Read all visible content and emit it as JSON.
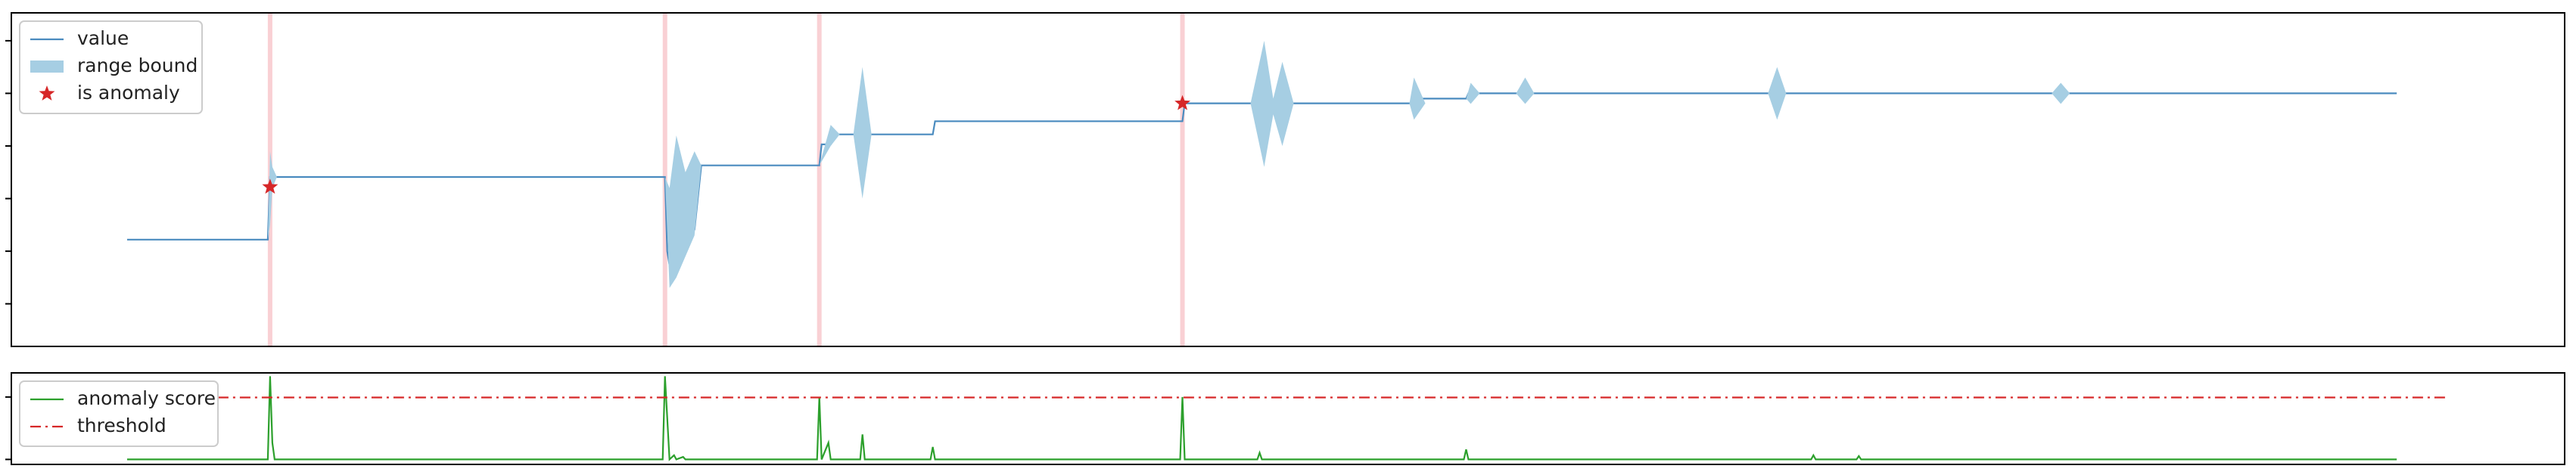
{
  "chart_data": [
    {
      "type": "line",
      "xlim": [
        -51,
        1074
      ],
      "ylim": [
        -0.81,
        5.53
      ],
      "yticks": [
        0,
        1,
        2,
        3,
        4,
        5
      ],
      "legend": "upper left",
      "spans": [
        63,
        237,
        305,
        465
      ],
      "span_color": "#f9d0d4",
      "series": [
        {
          "name": "value",
          "color": "#4a8bbf",
          "x": [
            0,
            62,
            63,
            237,
            238,
            240,
            243,
            246,
            248,
            250,
            253,
            305,
            306,
            310,
            311,
            355,
            356,
            465,
            466,
            570,
            571,
            590,
            591,
            1000
          ],
          "values": [
            1.22,
            1.22,
            2.41,
            2.41,
            1.0,
            0.47,
            2.1,
            1.4,
            2.0,
            1.4,
            2.63,
            2.63,
            3.03,
            3.03,
            3.22,
            3.22,
            3.47,
            3.47,
            3.81,
            3.81,
            3.9,
            3.9,
            4.0,
            4.0
          ]
        },
        {
          "name": "range bound",
          "color": "#a6cee3",
          "x": [
            0,
            62,
            63,
            64,
            66,
            237,
            239,
            242,
            246,
            250,
            253,
            305,
            310,
            314,
            320,
            324,
            328,
            355,
            465,
            495,
            501,
            505,
            509,
            514,
            565,
            567,
            572,
            590,
            592,
            596,
            612,
            616,
            620,
            723,
            727,
            731,
            848,
            852,
            856,
            1000
          ],
          "upper": [
            1.22,
            1.22,
            2.9,
            2.6,
            2.41,
            2.41,
            2.2,
            3.2,
            2.5,
            2.9,
            2.63,
            2.63,
            3.4,
            3.22,
            3.22,
            4.5,
            3.22,
            3.47,
            3.81,
            3.81,
            5.0,
            3.9,
            4.6,
            3.81,
            3.81,
            4.3,
            3.81,
            3.9,
            4.2,
            4.0,
            4.0,
            4.3,
            4.0,
            4.0,
            4.5,
            4.0,
            4.0,
            4.2,
            4.0,
            4.0
          ],
          "lower": [
            1.22,
            1.22,
            1.5,
            2.2,
            2.41,
            2.41,
            0.3,
            0.5,
            0.9,
            1.3,
            2.63,
            2.63,
            3.0,
            3.22,
            3.22,
            2.0,
            3.22,
            3.47,
            3.81,
            3.81,
            2.6,
            3.6,
            3.0,
            3.81,
            3.81,
            3.5,
            3.81,
            3.9,
            3.8,
            4.0,
            4.0,
            3.8,
            4.0,
            4.0,
            3.5,
            4.0,
            4.0,
            3.8,
            4.0,
            4.0
          ]
        },
        {
          "name": "is anomaly",
          "color": "#d62728",
          "marker": "star",
          "x": [
            63,
            465
          ],
          "values": [
            2.22,
            3.81
          ]
        }
      ]
    },
    {
      "type": "line",
      "xlim": [
        -51,
        1074
      ],
      "ylim": [
        -0.06,
        1.04
      ],
      "yticks": [
        0,
        0.75
      ],
      "legend": "upper left",
      "series": [
        {
          "name": "anomaly score",
          "color": "#2ca02c",
          "x": [
            0,
            62,
            63,
            64,
            65,
            236,
            237,
            238,
            239,
            241,
            242,
            245,
            246,
            304,
            305,
            306,
            309,
            310,
            311,
            323,
            324,
            325,
            354,
            355,
            356,
            464,
            465,
            466,
            498,
            499,
            500,
            589,
            590,
            591,
            742,
            743,
            744,
            762,
            763,
            764,
            1000
          ],
          "values": [
            0,
            0,
            1.0,
            0.2,
            0,
            0,
            1.0,
            0.5,
            0,
            0.05,
            0,
            0.03,
            0,
            0,
            0.75,
            0,
            0.2,
            0,
            0,
            0,
            0.3,
            0,
            0,
            0.15,
            0,
            0,
            0.75,
            0,
            0,
            0.08,
            0,
            0,
            0.12,
            0,
            0,
            0.05,
            0,
            0,
            0.04,
            0,
            0
          ]
        },
        {
          "name": "threshold",
          "color": "#d62728",
          "dash": "dashdot",
          "x": [
            40,
            1022
          ],
          "values": [
            0.745,
            0.745
          ]
        }
      ]
    }
  ]
}
